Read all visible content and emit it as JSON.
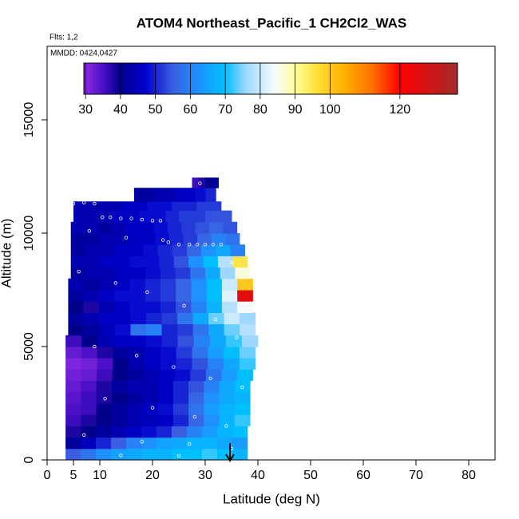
{
  "chart_data": {
    "type": "heatmap",
    "title": "ATOM4 Northeast_Pacific_1 CH2Cl2_WAS",
    "flights_label": "Flts: 1,2",
    "dates_label": "MMDD: 0424,0427",
    "x_label": "Latitude (deg N)",
    "y_label": "Altitude (m)",
    "xlim": [
      0,
      85
    ],
    "xticks": [
      0,
      5,
      10,
      20,
      30,
      40,
      50,
      60,
      70,
      80
    ],
    "ylim": [
      0,
      18240
    ],
    "yticks": [
      0,
      5000,
      10000,
      15000
    ],
    "colorbar": {
      "lim": [
        29.5,
        136.5
      ],
      "ticks": [
        30,
        40,
        50,
        60,
        70,
        80,
        90,
        100,
        120
      ]
    },
    "colormap": [
      [
        30,
        "#8a2be2"
      ],
      [
        35,
        "#4b10c8"
      ],
      [
        40,
        "#00008b"
      ],
      [
        47,
        "#0000cd"
      ],
      [
        55,
        "#3a5fe0"
      ],
      [
        62,
        "#1e90ff"
      ],
      [
        70,
        "#00bfff"
      ],
      [
        76,
        "#9fd8ff"
      ],
      [
        84,
        "#f5fbff"
      ],
      [
        90,
        "#ffff99"
      ],
      [
        96,
        "#ffe03c"
      ],
      [
        104,
        "#ffb000"
      ],
      [
        112,
        "#ff7000"
      ],
      [
        120,
        "#ff0000"
      ],
      [
        136,
        "#a52a2a"
      ]
    ],
    "rows": [
      {
        "alt": [
          0,
          500
        ],
        "lat": [
          3.5,
          38
        ],
        "values": [
          55,
          58,
          62,
          65,
          66,
          68,
          68,
          70,
          70,
          72,
          70,
          68
        ]
      },
      {
        "alt": [
          500,
          1000
        ],
        "lat": [
          3.5,
          38
        ],
        "values": [
          42,
          45,
          50,
          55,
          60,
          62,
          65,
          66,
          68,
          68,
          66,
          64
        ]
      },
      {
        "alt": [
          1000,
          1500
        ],
        "lat": [
          3.5,
          38
        ],
        "values": [
          38,
          40,
          42,
          44,
          46,
          48,
          50,
          55,
          60,
          64,
          68,
          70
        ]
      },
      {
        "alt": [
          1500,
          2000
        ],
        "lat": [
          3.5,
          38.5
        ],
        "values": [
          36,
          38,
          40,
          42,
          44,
          45,
          46,
          50,
          56,
          62,
          68,
          72
        ]
      },
      {
        "alt": [
          2000,
          2500
        ],
        "lat": [
          3.5,
          38.5
        ],
        "values": [
          35,
          36,
          40,
          42,
          44,
          46,
          48,
          52,
          58,
          64,
          68,
          70
        ]
      },
      {
        "alt": [
          2500,
          3000
        ],
        "lat": [
          3.5,
          38.5
        ],
        "values": [
          34,
          36,
          38,
          40,
          42,
          44,
          46,
          50,
          56,
          62,
          66,
          68
        ]
      },
      {
        "alt": [
          3000,
          3500
        ],
        "lat": [
          3.5,
          38.5
        ],
        "values": [
          33,
          35,
          38,
          42,
          44,
          44,
          46,
          50,
          54,
          60,
          66,
          70
        ]
      },
      {
        "alt": [
          3500,
          4000
        ],
        "lat": [
          3.5,
          39
        ],
        "values": [
          32,
          33,
          36,
          40,
          42,
          44,
          46,
          48,
          52,
          58,
          64,
          70
        ]
      },
      {
        "alt": [
          4000,
          4500
        ],
        "lat": [
          3.5,
          39.5
        ],
        "values": [
          31,
          32,
          35,
          40,
          44,
          46,
          48,
          50,
          54,
          60,
          66,
          72
        ]
      },
      {
        "alt": [
          4500,
          5000
        ],
        "lat": [
          3.5,
          39.5
        ],
        "values": [
          33,
          35,
          38,
          42,
          44,
          46,
          48,
          52,
          58,
          64,
          70,
          74
        ]
      },
      {
        "alt": [
          5000,
          5500
        ],
        "lat": [
          3.5,
          40
        ],
        "values": [
          36,
          40,
          44,
          46,
          46,
          48,
          50,
          54,
          60,
          66,
          72,
          76
        ]
      },
      {
        "alt": [
          5500,
          6000
        ],
        "lat": [
          4,
          39.5
        ],
        "values": [
          40,
          42,
          45,
          48,
          58,
          60,
          50,
          52,
          58,
          66,
          74,
          78
        ]
      },
      {
        "alt": [
          6000,
          6500
        ],
        "lat": [
          4,
          39.5
        ],
        "values": [
          42,
          44,
          46,
          46,
          48,
          50,
          52,
          58,
          66,
          74,
          80,
          76
        ]
      },
      {
        "alt": [
          6500,
          7000
        ],
        "lat": [
          4,
          39
        ],
        "values": [
          40,
          38,
          44,
          46,
          48,
          48,
          50,
          54,
          60,
          68,
          78,
          84
        ]
      },
      {
        "alt": [
          7000,
          7500
        ],
        "lat": [
          4,
          39
        ],
        "values": [
          42,
          44,
          46,
          48,
          48,
          50,
          52,
          56,
          62,
          70,
          82,
          125
        ]
      },
      {
        "alt": [
          7500,
          8000
        ],
        "lat": [
          4,
          39
        ],
        "values": [
          44,
          42,
          44,
          46,
          48,
          50,
          52,
          56,
          62,
          70,
          80,
          100
        ]
      },
      {
        "alt": [
          8000,
          8500
        ],
        "lat": [
          4.5,
          38.5
        ],
        "values": [
          42,
          44,
          44,
          46,
          46,
          48,
          50,
          52,
          58,
          66,
          76,
          86
        ]
      },
      {
        "alt": [
          8500,
          9000
        ],
        "lat": [
          4.5,
          38
        ],
        "values": [
          44,
          44,
          46,
          46,
          48,
          48,
          50,
          54,
          62,
          70,
          78,
          95
        ]
      },
      {
        "alt": [
          9000,
          9500
        ],
        "lat": [
          4.5,
          37.5
        ],
        "values": [
          42,
          44,
          44,
          46,
          46,
          48,
          50,
          52,
          56,
          62,
          66,
          60
        ]
      },
      {
        "alt": [
          9500,
          10000
        ],
        "lat": [
          4.5,
          36.5
        ],
        "values": [
          42,
          42,
          44,
          44,
          46,
          46,
          48,
          50,
          52,
          56,
          60,
          58
        ]
      },
      {
        "alt": [
          10000,
          10500
        ],
        "lat": [
          4.5,
          36
        ],
        "values": [
          44,
          44,
          42,
          44,
          46,
          46,
          48,
          50,
          52,
          54,
          56,
          54
        ]
      },
      {
        "alt": [
          10500,
          11000
        ],
        "lat": [
          5,
          35
        ],
        "values": [
          44,
          44,
          44,
          46,
          46,
          48,
          48,
          50,
          52,
          52,
          54,
          54
        ]
      },
      {
        "alt": [
          11000,
          11400
        ],
        "lat": [
          5,
          33
        ],
        "values": [
          44,
          44,
          44,
          44,
          46,
          46,
          48,
          48,
          50,
          50,
          52,
          52
        ]
      },
      {
        "alt": [
          11400,
          12000
        ],
        "lat": [
          16.5,
          32
        ],
        "values": [
          42,
          42,
          44,
          44,
          46,
          46,
          48,
          50
        ]
      },
      {
        "alt": [
          12000,
          12450
        ],
        "lat": [
          27.5,
          32.5
        ],
        "values": [
          36,
          38,
          40,
          42
        ]
      }
    ],
    "samples": {
      "x": [
        5,
        7,
        9,
        10.5,
        12,
        14,
        16,
        18,
        20,
        21.5,
        23,
        25,
        27,
        28.5,
        30,
        31.5,
        33,
        8,
        15,
        22,
        29,
        35,
        6,
        13,
        19,
        26,
        32,
        36,
        9,
        17,
        24,
        31,
        37,
        11,
        20,
        28,
        34,
        7,
        18,
        27,
        35,
        14,
        25
      ],
      "y": [
        11300,
        11350,
        11300,
        10700,
        10700,
        10650,
        10650,
        10600,
        10550,
        10550,
        9600,
        9500,
        9500,
        9500,
        9500,
        9500,
        9500,
        10100,
        9800,
        9700,
        12200,
        8700,
        8300,
        7800,
        7400,
        6800,
        6200,
        5400,
        5000,
        4600,
        4100,
        3600,
        3200,
        2700,
        2300,
        1900,
        1500,
        1100,
        800,
        700,
        500,
        200,
        180
      ]
    }
  }
}
